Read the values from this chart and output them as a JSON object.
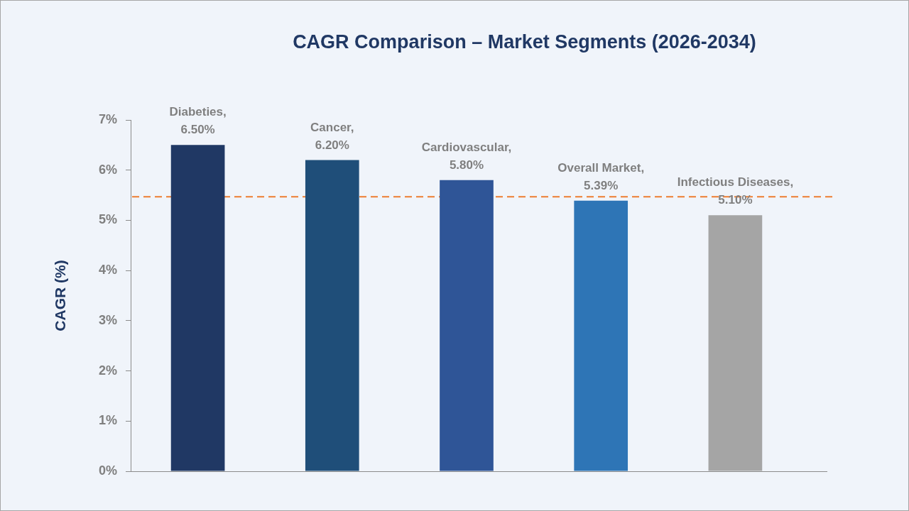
{
  "chart_data": {
    "type": "bar",
    "title": "CAGR Comparison – Market Segments (2026-2034)",
    "ylabel": "CAGR (%)",
    "categories": [
      null,
      null,
      null,
      null,
      null
    ],
    "values": [
      6.5,
      6.2,
      5.8,
      5.39,
      5.1
    ],
    "colors": [
      "#203864",
      "#1f4e79",
      "#2f5597",
      "#2e75b6",
      "#a5a5a5"
    ],
    "value_labels": [
      "Diabeties, 6.50%",
      "Cancer, 6.20%",
      "Cardiovascular, 5.80%",
      "Overall Market, 5.39%",
      "Infectious Diseases, 5.10%"
    ],
    "ylim": [
      0,
      7
    ],
    "yticks": [
      {
        "value": 0,
        "label": "0%"
      },
      {
        "value": 1,
        "label": "1%"
      },
      {
        "value": 2,
        "label": "2%"
      },
      {
        "value": 3,
        "label": "3%"
      },
      {
        "value": 4,
        "label": "4%"
      },
      {
        "value": 5,
        "label": "5%"
      },
      {
        "value": 6,
        "label": "6%"
      },
      {
        "value": 7,
        "label": "7%"
      }
    ],
    "ref_lines": [
      {
        "axis": "y",
        "value": 5.47,
        "color": "#ed7d31",
        "line_style": "dashed"
      }
    ],
    "grid": false,
    "legend": false,
    "tick_labels": "y"
  }
}
